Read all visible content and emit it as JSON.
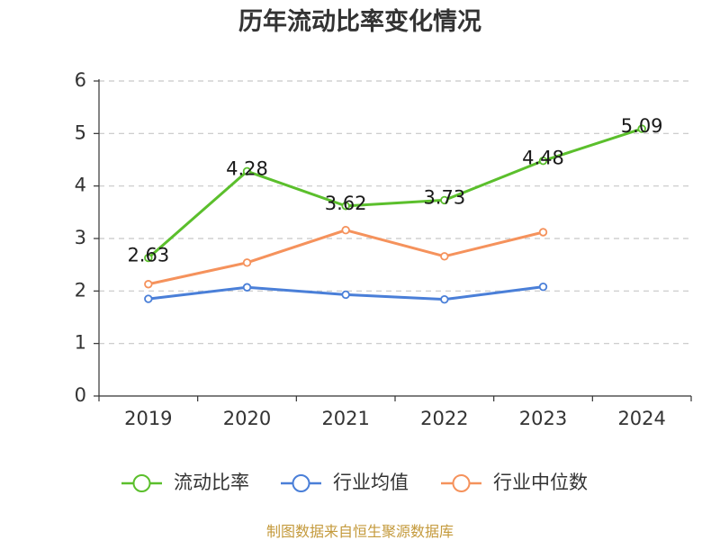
{
  "chart_data": {
    "type": "line",
    "title": "历年流动比率变化情况",
    "categories": [
      "2019",
      "2020",
      "2021",
      "2022",
      "2023",
      "2024"
    ],
    "ylim": [
      0,
      6
    ],
    "yticks": [
      0,
      1,
      2,
      3,
      4,
      5,
      6
    ],
    "grid": true,
    "legend_position": "bottom",
    "series": [
      {
        "name": "流动比率",
        "color": "#5bbf2c",
        "values": [
          2.63,
          4.28,
          3.62,
          3.73,
          4.48,
          5.09
        ],
        "show_labels": true
      },
      {
        "name": "行业均值",
        "color": "#4a7fd8",
        "values": [
          1.85,
          2.07,
          1.93,
          1.84,
          2.08,
          null
        ],
        "show_labels": false
      },
      {
        "name": "行业中位数",
        "color": "#f5925c",
        "values": [
          2.13,
          2.54,
          3.16,
          2.66,
          3.12,
          null
        ],
        "show_labels": false
      }
    ]
  },
  "source_note": "制图数据来自恒生聚源数据库",
  "colors": {
    "axis": "#333333",
    "grid": "#c8c8c8",
    "source_note": "#c49a3c"
  }
}
